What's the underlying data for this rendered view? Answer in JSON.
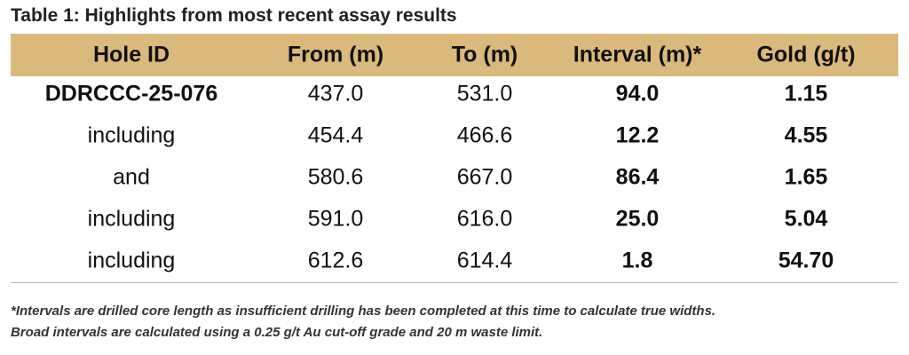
{
  "title": "Table 1: Highlights from most recent assay results",
  "table": {
    "headers": [
      "Hole ID",
      "From (m)",
      "To (m)",
      "Interval (m)*",
      "Gold (g/t)"
    ],
    "rows": [
      [
        "DDRCCC-25-076",
        "437.0",
        "531.0",
        "94.0",
        "1.15"
      ],
      [
        "including",
        "454.4",
        "466.6",
        "12.2",
        "4.55"
      ],
      [
        "and",
        "580.6",
        "667.0",
        "86.4",
        "1.65"
      ],
      [
        "including",
        "591.0",
        "616.0",
        "25.0",
        "5.04"
      ],
      [
        "including",
        "612.6",
        "614.4",
        "1.8",
        "54.70"
      ]
    ]
  },
  "notes": [
    "*Intervals are drilled core length as insufficient drilling has been completed at this time to calculate true widths.",
    "Broad intervals are calculated using a 0.25 g/t Au cut-off grade and 20 m waste limit."
  ]
}
